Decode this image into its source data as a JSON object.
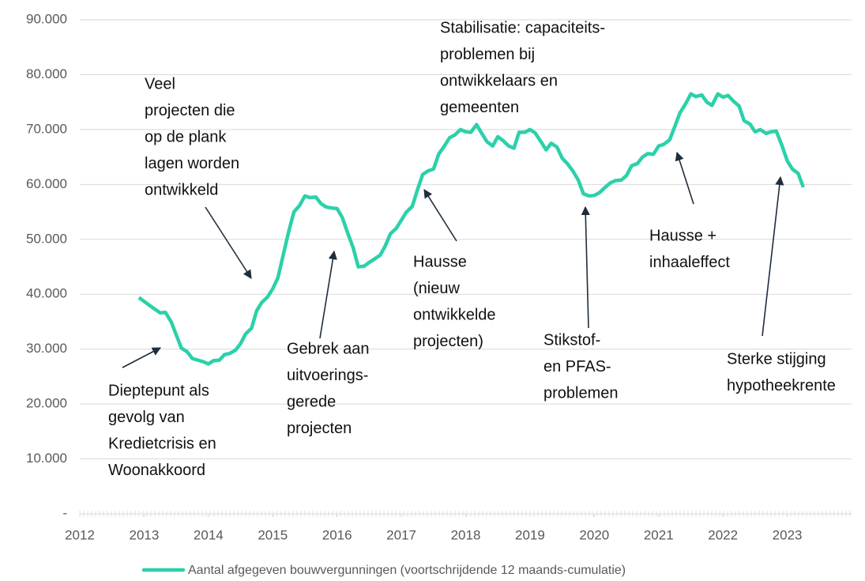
{
  "chart_data": {
    "type": "line",
    "x": [
      2012.92,
      2013.08,
      2013.25,
      2013.33,
      2013.42,
      2013.58,
      2013.67,
      2013.75,
      2013.92,
      2014.0,
      2014.08,
      2014.17,
      2014.25,
      2014.33,
      2014.42,
      2014.5,
      2014.58,
      2014.67,
      2014.75,
      2014.83,
      2014.92,
      2015.0,
      2015.08,
      2015.17,
      2015.25,
      2015.33,
      2015.42,
      2015.5,
      2015.58,
      2015.67,
      2015.75,
      2015.83,
      2015.92,
      2016.0,
      2016.08,
      2016.17,
      2016.25,
      2016.33,
      2016.42,
      2016.5,
      2016.58,
      2016.67,
      2016.75,
      2016.83,
      2016.92,
      2017.0,
      2017.08,
      2017.17,
      2017.25,
      2017.33,
      2017.42,
      2017.5,
      2017.58,
      2017.67,
      2017.75,
      2017.83,
      2017.92,
      2018.0,
      2018.08,
      2018.17,
      2018.25,
      2018.33,
      2018.42,
      2018.5,
      2018.58,
      2018.67,
      2018.75,
      2018.83,
      2018.92,
      2019.0,
      2019.08,
      2019.17,
      2019.25,
      2019.33,
      2019.42,
      2019.5,
      2019.58,
      2019.67,
      2019.75,
      2019.83,
      2019.92,
      2020.0,
      2020.08,
      2020.17,
      2020.25,
      2020.33,
      2020.42,
      2020.5,
      2020.58,
      2020.67,
      2020.75,
      2020.83,
      2020.92,
      2021.0,
      2021.08,
      2021.17,
      2021.25,
      2021.33,
      2021.42,
      2021.5,
      2021.58,
      2021.67,
      2021.75,
      2021.83,
      2021.92,
      2022.0,
      2022.08,
      2022.17,
      2022.25,
      2022.33,
      2022.42,
      2022.5,
      2022.58,
      2022.67,
      2022.75,
      2022.83,
      2022.92,
      2023.0,
      2023.08,
      2023.17,
      2023.25
    ],
    "series": [
      {
        "name": "Aantal afgegeven bouwvergunningen (voortschrijdende 12 maands-cumulatie)",
        "color": "#2bd1a9",
        "values": [
          39400,
          38000,
          36600,
          36700,
          35000,
          30200,
          29500,
          28300,
          27700,
          27300,
          27900,
          28000,
          29000,
          29200,
          29800,
          31000,
          32800,
          33800,
          37000,
          38500,
          39500,
          41000,
          43000,
          47500,
          51500,
          55000,
          56200,
          57900,
          57600,
          57700,
          56500,
          55900,
          55700,
          55600,
          54000,
          51000,
          48500,
          45000,
          45100,
          45800,
          46400,
          47100,
          48800,
          51000,
          52000,
          53500,
          55000,
          56000,
          59000,
          61800,
          62500,
          62800,
          65500,
          67000,
          68500,
          69000,
          70000,
          69600,
          69500,
          70900,
          69300,
          67800,
          67000,
          68700,
          68000,
          67000,
          66600,
          69500,
          69500,
          70000,
          69400,
          67800,
          66300,
          67500,
          66800,
          64800,
          63800,
          62400,
          60800,
          58300,
          57900,
          58000,
          58500,
          59500,
          60300,
          60700,
          60800,
          61600,
          63400,
          63800,
          65000,
          65600,
          65500,
          67000,
          67300,
          68100,
          70500,
          73000,
          74700,
          76500,
          76000,
          76300,
          75000,
          74400,
          76500,
          75900,
          76200,
          75100,
          74300,
          71600,
          71000,
          69600,
          70000,
          69300,
          69600,
          69700,
          67000,
          64300,
          62800,
          62000,
          59500
        ]
      }
    ],
    "xlim": [
      2012,
      2024
    ],
    "xticks": [
      2012,
      2013,
      2014,
      2015,
      2016,
      2017,
      2018,
      2019,
      2020,
      2021,
      2022,
      2023
    ],
    "ylim": [
      0,
      90000
    ],
    "yticks": [
      {
        "value": 0,
        "label": "-"
      },
      {
        "value": 10000,
        "label": "10.000"
      },
      {
        "value": 20000,
        "label": "20.000"
      },
      {
        "value": 30000,
        "label": "30.000"
      },
      {
        "value": 40000,
        "label": "40.000"
      },
      {
        "value": 50000,
        "label": "50.000"
      },
      {
        "value": 60000,
        "label": "60.000"
      },
      {
        "value": 70000,
        "label": "70.000"
      },
      {
        "value": 80000,
        "label": "80.000"
      },
      {
        "value": 90000,
        "label": "90.000"
      }
    ],
    "grid": true,
    "legend": "bottom",
    "annotations": [
      {
        "lines": [
          "Veel",
          "projecten die",
          "op de plank",
          "lagen worden",
          "ontwikkeld"
        ]
      },
      {
        "lines": [
          "Dieptepunt  als",
          "gevolg van",
          "Kredietcrisis en",
          "Woonakkoord"
        ]
      },
      {
        "lines": [
          "Gebrek aan",
          "uitvoerings-",
          "gerede",
          "projecten"
        ]
      },
      {
        "lines": [
          "Hausse",
          "(nieuw",
          "ontwikkelde",
          "projecten)"
        ]
      },
      {
        "lines": [
          "Stabilisatie: capaciteits-",
          "problemen bij",
          "ontwikkelaars en",
          "gemeenten"
        ]
      },
      {
        "lines": [
          "Stikstof-",
          "en PFAS-",
          "problemen"
        ]
      },
      {
        "lines": [
          "Hausse +",
          "inhaaleffect"
        ]
      },
      {
        "lines": [
          "Sterke stijging",
          "hypotheekrente"
        ]
      }
    ]
  }
}
